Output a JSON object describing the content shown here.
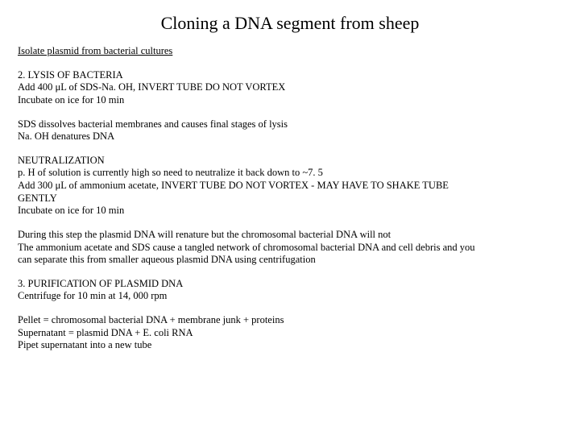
{
  "title": "Cloning a DNA segment from sheep",
  "p1": {
    "l1": "Isolate plasmid from bacterial cultures"
  },
  "p2": {
    "l1": "2. LYSIS OF BACTERIA",
    "l2": "Add 400 μL of SDS-Na. OH, INVERT TUBE DO NOT VORTEX",
    "l3": "Incubate on ice for 10 min"
  },
  "p3": {
    "l1": "SDS dissolves bacterial membranes and causes final stages of lysis",
    "l2": "Na. OH denatures DNA"
  },
  "p4": {
    "l1": "NEUTRALIZATION",
    "l2": "p. H of solution is currently high so need to neutralize it back down to ~7. 5",
    "l3": "Add 300 μL of ammonium acetate, INVERT TUBE DO NOT VORTEX - MAY HAVE TO SHAKE TUBE",
    "l4": "GENTLY",
    "l5": "Incubate on ice for 10 min"
  },
  "p5": {
    "l1": "During this step the plasmid DNA will renature but the chromosomal bacterial DNA will not",
    "l2": "The ammonium acetate and SDS cause a tangled network of chromosomal bacterial DNA and cell debris and you",
    "l3": "can separate this from smaller aqueous plasmid DNA using centrifugation"
  },
  "p6": {
    "l1": "3. PURIFICATION OF PLASMID DNA",
    "l2": "Centrifuge for 10 min at 14, 000 rpm"
  },
  "p7": {
    "l1": "Pellet = chromosomal bacterial DNA + membrane junk + proteins",
    "l2": "Supernatant = plasmid DNA + E. coli RNA",
    "l3": "Pipet supernatant into a new tube"
  }
}
